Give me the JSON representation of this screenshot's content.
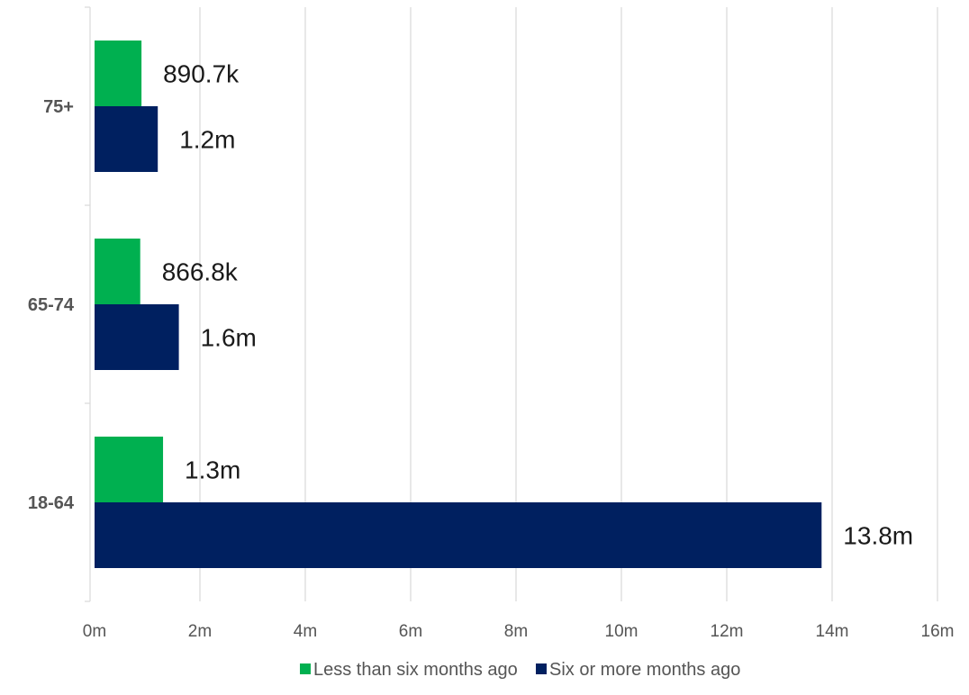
{
  "chart_data": {
    "type": "bar",
    "orientation": "horizontal",
    "categories": [
      "75+",
      "65-74",
      "18-64"
    ],
    "series": [
      {
        "name": "Less than six months ago",
        "color": "#00b050",
        "values": [
          890700,
          866800,
          1300000
        ],
        "labels": [
          "890.7k",
          "866.8k",
          "1.3m"
        ]
      },
      {
        "name": "Six or more months ago",
        "color": "#002060",
        "values": [
          1200000,
          1600000,
          13800000
        ],
        "labels": [
          "1.2m",
          "1.6m",
          "13.8m"
        ]
      }
    ],
    "x_ticks": [
      0,
      2000000,
      4000000,
      6000000,
      8000000,
      10000000,
      12000000,
      14000000,
      16000000
    ],
    "x_tick_labels": [
      "0m",
      "2m",
      "4m",
      "6m",
      "8m",
      "10m",
      "12m",
      "14m",
      "16m"
    ],
    "xlim": [
      0,
      16000000
    ],
    "grid": true,
    "legend_position": "bottom",
    "title": "",
    "xlabel": "",
    "ylabel": ""
  }
}
